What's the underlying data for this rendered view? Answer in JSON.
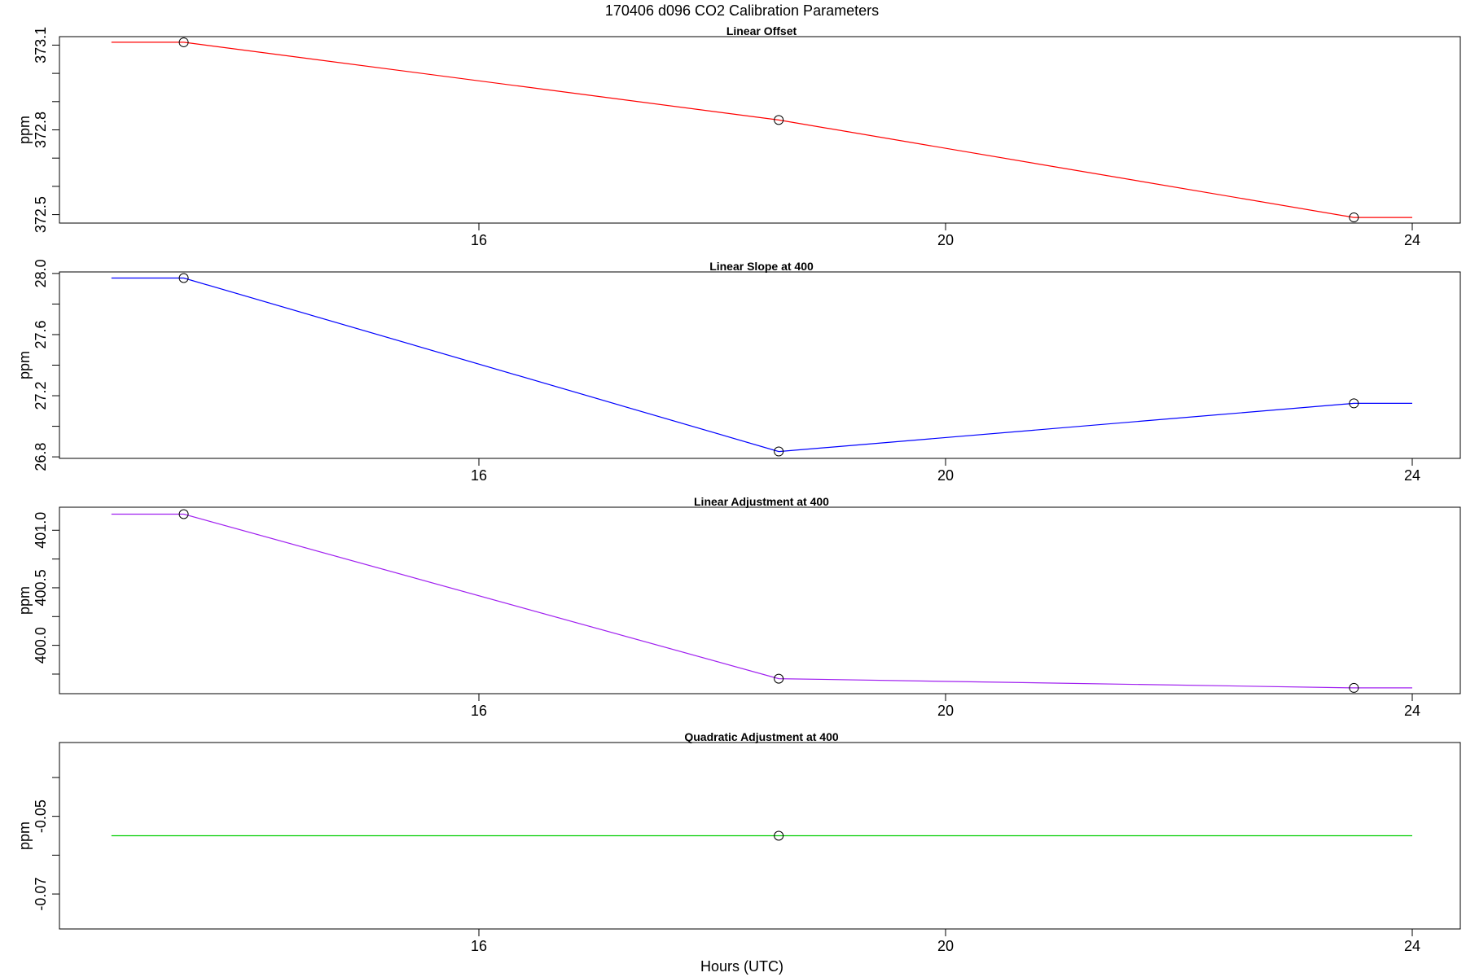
{
  "figure": {
    "title": "170406   d096   CO2 Calibration Parameters",
    "xlabel": "Hours (UTC)"
  },
  "chart_data": [
    {
      "type": "line",
      "title": "Linear Offset",
      "xlabel": "",
      "ylabel": "ppm",
      "color": "#ff0000",
      "xlim": [
        12.4,
        24.4
      ],
      "ylim": [
        372.47,
        373.13
      ],
      "x_ticks": [
        16,
        20,
        24
      ],
      "y_ticks_labeled": [
        372.5,
        372.8,
        373.1
      ],
      "y_ticks_minor": [
        372.6,
        372.7,
        372.9,
        373.0
      ],
      "line_x": [
        12.85,
        13.47,
        18.57,
        23.5,
        24.0
      ],
      "line_y": [
        373.11,
        373.11,
        372.835,
        372.49,
        372.49
      ],
      "points": [
        {
          "x": 13.47,
          "y": 373.11
        },
        {
          "x": 18.57,
          "y": 372.835
        },
        {
          "x": 23.5,
          "y": 372.49
        }
      ],
      "grid": false
    },
    {
      "type": "line",
      "title": "Linear Slope at 400",
      "xlabel": "",
      "ylabel": "ppm",
      "color": "#0000ff",
      "xlim": [
        12.4,
        24.4
      ],
      "ylim": [
        26.79,
        28.01
      ],
      "x_ticks": [
        16,
        20,
        24
      ],
      "y_ticks_labeled": [
        26.8,
        27.2,
        27.6,
        28.0
      ],
      "y_ticks_minor": [
        27.0,
        27.4,
        27.8
      ],
      "line_x": [
        12.85,
        13.47,
        18.57,
        23.5,
        24.0
      ],
      "line_y": [
        27.97,
        27.97,
        26.835,
        27.15,
        27.15
      ],
      "points": [
        {
          "x": 13.47,
          "y": 27.97
        },
        {
          "x": 18.57,
          "y": 26.835
        },
        {
          "x": 23.5,
          "y": 27.15
        }
      ],
      "grid": false
    },
    {
      "type": "line",
      "title": "Linear Adjustment at 400",
      "xlabel": "",
      "ylabel": "ppm",
      "color": "#a020f0",
      "xlim": [
        12.4,
        24.4
      ],
      "ylim": [
        399.58,
        401.2
      ],
      "x_ticks": [
        16,
        20,
        24
      ],
      "y_ticks_labeled": [
        400.0,
        400.5,
        401.0
      ],
      "y_ticks_minor": [
        399.75,
        400.25,
        400.75
      ],
      "line_x": [
        12.85,
        13.47,
        18.57,
        23.5,
        24.0
      ],
      "line_y": [
        401.14,
        401.14,
        399.71,
        399.63,
        399.63
      ],
      "points": [
        {
          "x": 13.47,
          "y": 401.14
        },
        {
          "x": 18.57,
          "y": 399.71
        },
        {
          "x": 23.5,
          "y": 399.63
        }
      ],
      "grid": false
    },
    {
      "type": "line",
      "title": "Quadratic Adjustment at 400",
      "xlabel": "",
      "ylabel": "ppm",
      "color": "#00cd00",
      "xlim": [
        12.4,
        24.4
      ],
      "ylim": [
        -0.079,
        -0.031
      ],
      "x_ticks": [
        16,
        20,
        24
      ],
      "y_ticks_labeled": [
        -0.07,
        -0.05
      ],
      "y_ticks_minor": [
        -0.06,
        -0.04
      ],
      "line_x": [
        12.85,
        24.0
      ],
      "line_y": [
        -0.055,
        -0.055
      ],
      "points": [
        {
          "x": 18.57,
          "y": -0.055
        }
      ],
      "grid": false
    }
  ]
}
